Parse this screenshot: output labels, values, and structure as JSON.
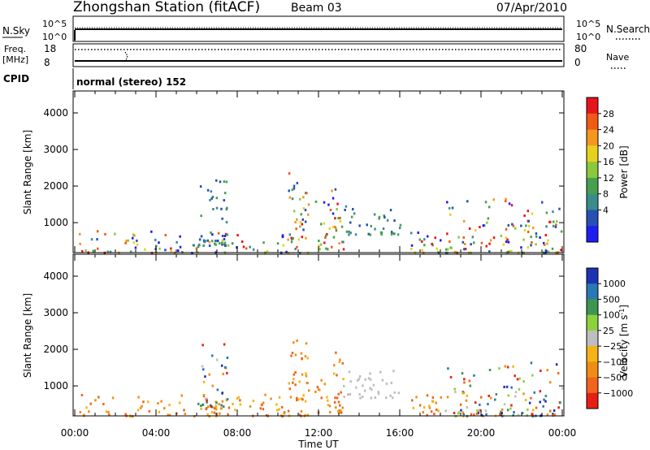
{
  "header": {
    "title": "Zhongshan Station (fitACF)",
    "beam": "Beam 03",
    "date": "07/Apr/2010"
  },
  "status_panels": {
    "sky_label": "N.Sky",
    "search_label": "N.Search",
    "sky_ticks": [
      "10^5",
      "10^0"
    ],
    "search_ticks": [
      "10^5",
      "10^0"
    ],
    "freq_label_top": "Freq.",
    "freq_label_unit": "[MHz]",
    "freq_ticks": [
      "18",
      "8"
    ],
    "nave_label": "Nave",
    "nave_ticks": [
      "80",
      "0"
    ],
    "cpid_label": "CPID",
    "cpid_text": "normal (stereo) 152"
  },
  "chart_data": [
    {
      "type": "heatmap",
      "quantity": "Power",
      "xlabel": "Time UT",
      "ylabel": "Slant Range [km]",
      "xlim_hours": [
        0,
        24
      ],
      "ylim": [
        180,
        4600
      ],
      "colorbar_label": "Power [dB]",
      "colorbar_ticks": [
        "28",
        "24",
        "20",
        "16",
        "12",
        "8",
        "4"
      ],
      "colorbar_colors": [
        "#e8141c",
        "#f05a14",
        "#f5961e",
        "#e6d21e",
        "#8cc83c",
        "#46a050",
        "#3a8c8c",
        "#2850b4",
        "#1e1ef0"
      ],
      "scatter_regions": [
        {
          "t0": 0.2,
          "t1": 11.5,
          "r0": 200,
          "r1": 800,
          "level": "mixed"
        },
        {
          "t0": 6.0,
          "t1": 7.5,
          "r0": 400,
          "r1": 2300,
          "level": "low"
        },
        {
          "t0": 10.5,
          "t1": 11.5,
          "r0": 600,
          "r1": 2400,
          "level": "mixed"
        },
        {
          "t0": 11.8,
          "t1": 13.2,
          "r0": 300,
          "r1": 2000,
          "level": "mixed"
        },
        {
          "t0": 13.2,
          "t1": 16.0,
          "r0": 700,
          "r1": 1500,
          "level": "low"
        },
        {
          "t0": 16.5,
          "t1": 18.0,
          "r0": 200,
          "r1": 800,
          "level": "mixed"
        },
        {
          "t0": 18.2,
          "t1": 24.0,
          "r0": 200,
          "r1": 1700,
          "level": "mixed"
        }
      ]
    },
    {
      "type": "heatmap",
      "quantity": "Velocity",
      "xlabel": "Time UT",
      "ylabel": "Slant Range [km]",
      "xlim_hours": [
        0,
        24
      ],
      "ylim": [
        180,
        4600
      ],
      "colorbar_label": "Velocity [m s^-1]",
      "colorbar_ticks": [
        "1000",
        "500",
        "100",
        "25",
        "−25",
        "−100",
        "−500",
        "−1000"
      ],
      "colorbar_colors": [
        "#1e32b4",
        "#2878b4",
        "#3c9650",
        "#8cd23c",
        "#bebebe",
        "#f5b414",
        "#f08c14",
        "#f0641e",
        "#e61e14"
      ],
      "scatter_regions": [
        {
          "t0": 0.2,
          "t1": 11.5,
          "r0": 200,
          "r1": 800,
          "level": "orange"
        },
        {
          "t0": 6.0,
          "t1": 7.5,
          "r0": 400,
          "r1": 2300,
          "level": "mixed"
        },
        {
          "t0": 10.5,
          "t1": 11.5,
          "r0": 600,
          "r1": 2400,
          "level": "orange"
        },
        {
          "t0": 11.8,
          "t1": 13.2,
          "r0": 300,
          "r1": 2000,
          "level": "orange"
        },
        {
          "t0": 13.2,
          "t1": 16.0,
          "r0": 700,
          "r1": 1500,
          "level": "grey"
        },
        {
          "t0": 16.5,
          "t1": 18.0,
          "r0": 200,
          "r1": 800,
          "level": "orange"
        },
        {
          "t0": 18.2,
          "t1": 24.0,
          "r0": 200,
          "r1": 1700,
          "level": "mixed"
        }
      ]
    }
  ],
  "axes": {
    "y_ticks": [
      "4000",
      "3000",
      "2000",
      "1000"
    ],
    "x_ticks": [
      "00:00",
      "04:00",
      "08:00",
      "12:00",
      "16:00",
      "20:00",
      "00:00"
    ]
  }
}
